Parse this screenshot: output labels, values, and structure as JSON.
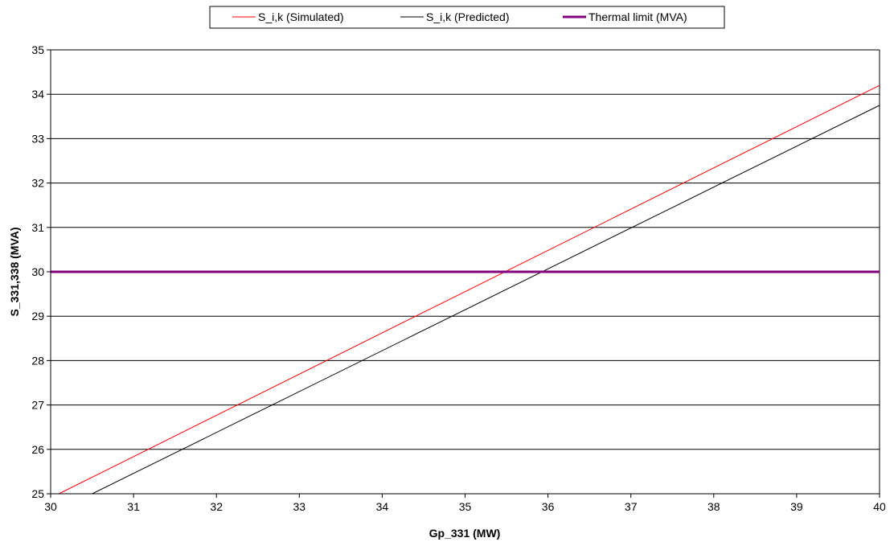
{
  "chart_data": {
    "type": "line",
    "title": "",
    "xlabel": "Gp_331 (MW)",
    "ylabel": "S_331,338 (MVA)",
    "xlim": [
      30,
      40
    ],
    "ylim": [
      25,
      35
    ],
    "xticks": [
      "30",
      "31",
      "32",
      "33",
      "34",
      "35",
      "36",
      "37",
      "38",
      "39",
      "40"
    ],
    "yticks": [
      "25",
      "26",
      "27",
      "28",
      "29",
      "30",
      "31",
      "32",
      "33",
      "34",
      "35"
    ],
    "grid": "horizontal",
    "legend_position": "top-center",
    "series": [
      {
        "name": "S_i,k (Simulated)",
        "color": "#ff0000",
        "x": [
          30.1,
          40
        ],
        "y": [
          25.0,
          34.2
        ]
      },
      {
        "name": "S_i,k (Predicted)",
        "color": "#000000",
        "x": [
          30.5,
          40
        ],
        "y": [
          25.0,
          33.75
        ]
      },
      {
        "name": "Thermal limit (MVA)",
        "color": "#800080",
        "x": [
          30,
          40
        ],
        "y": [
          30.0,
          30.0
        ]
      }
    ]
  }
}
